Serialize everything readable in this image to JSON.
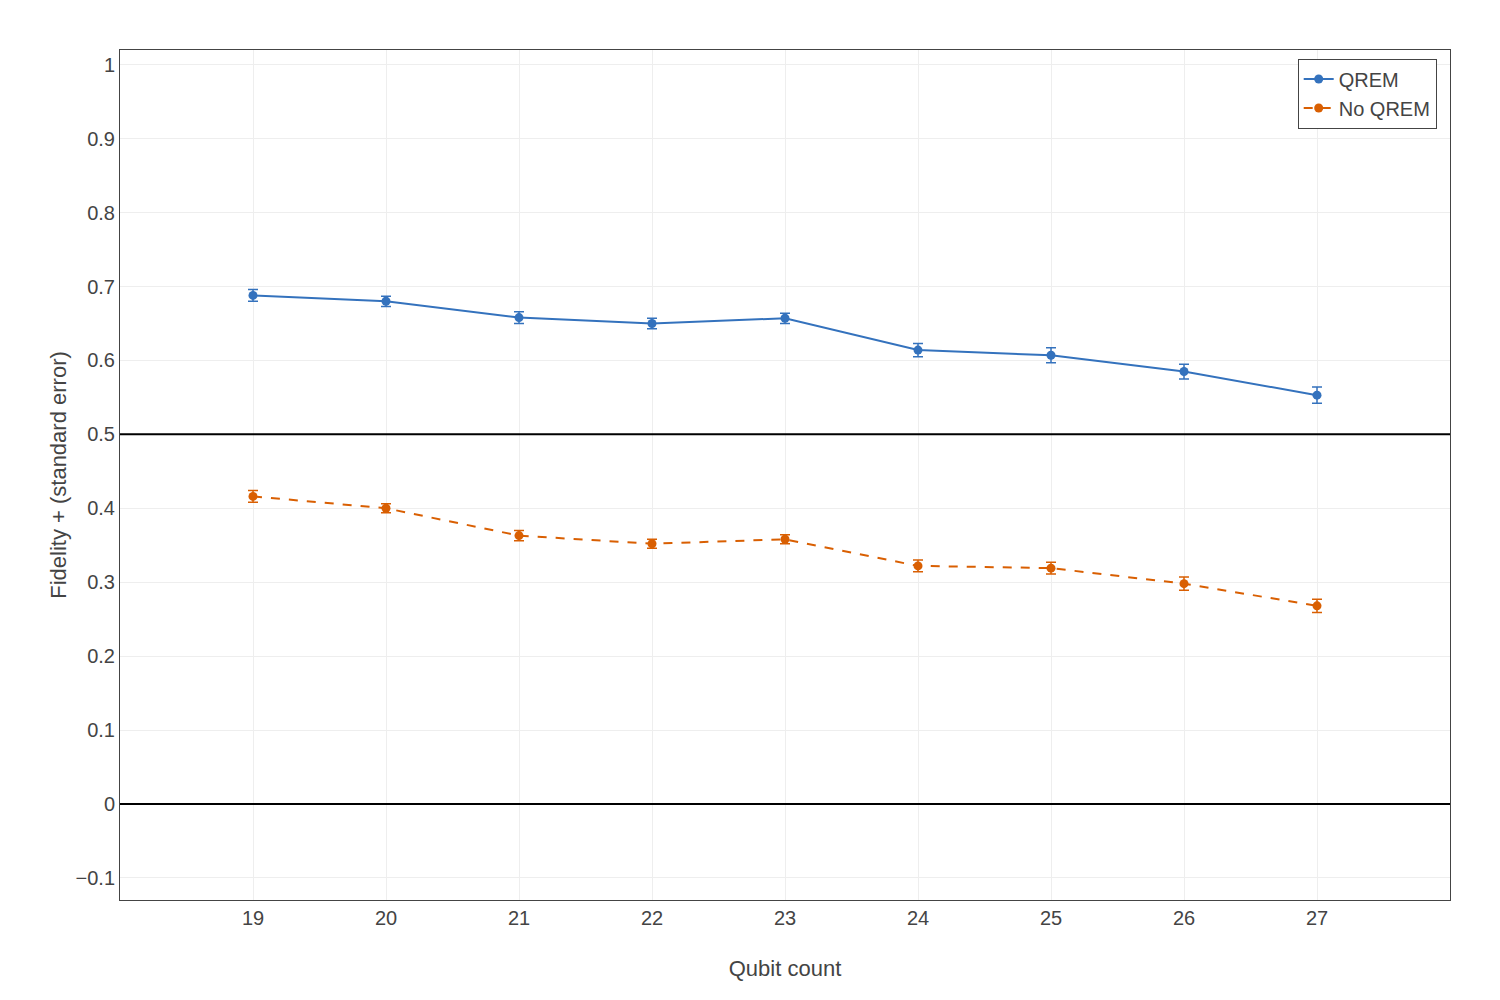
{
  "chart_data": {
    "type": "line",
    "x_label": "Qubit count",
    "y_label": "Fidelity + (standard error)",
    "x": [
      19,
      20,
      21,
      22,
      23,
      24,
      25,
      26,
      27
    ],
    "series": [
      {
        "name": "QREM",
        "color": "#3472bd",
        "line_style": "solid",
        "marker": "circle",
        "values": [
          0.688,
          0.68,
          0.658,
          0.65,
          0.657,
          0.614,
          0.607,
          0.585,
          0.553
        ],
        "errors": [
          0.008,
          0.007,
          0.008,
          0.007,
          0.007,
          0.009,
          0.01,
          0.01,
          0.011
        ]
      },
      {
        "name": "No QREM",
        "color": "#d95f02",
        "line_style": "dash",
        "marker": "circle",
        "values": [
          0.416,
          0.4,
          0.363,
          0.352,
          0.358,
          0.322,
          0.319,
          0.298,
          0.268
        ],
        "errors": [
          0.008,
          0.006,
          0.007,
          0.006,
          0.006,
          0.008,
          0.008,
          0.009,
          0.009
        ]
      }
    ],
    "hlines": [
      {
        "y": 0.5,
        "color": "#000000"
      },
      {
        "y": 0.0,
        "color": "#000000"
      }
    ],
    "xlim": [
      18,
      28
    ],
    "xticks": [
      19,
      20,
      21,
      22,
      23,
      24,
      25,
      26,
      27
    ],
    "ylim": [
      -0.13,
      1.02
    ],
    "yticks": [
      {
        "value": -0.1,
        "label": "−0.1"
      },
      0,
      0.1,
      0.2,
      0.3,
      0.4,
      0.5,
      0.6,
      0.7,
      0.8,
      0.9,
      1
    ],
    "grid": true,
    "legend": "upper right"
  }
}
